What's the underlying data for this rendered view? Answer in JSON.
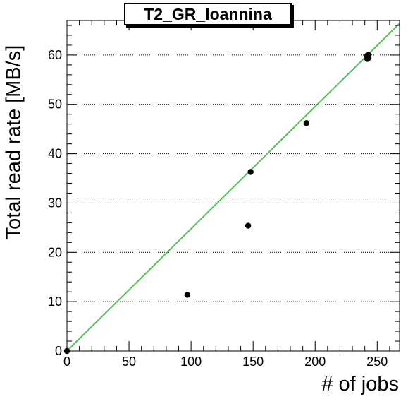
{
  "chart_data": {
    "type": "scatter",
    "title": "T2_GR_Ioannina",
    "xlabel": "# of jobs",
    "ylabel": "Total read rate [MB/s]",
    "xlim": [
      0,
      268
    ],
    "ylim": [
      0,
      67
    ],
    "xticks": [
      0,
      50,
      100,
      150,
      200,
      250
    ],
    "yticks": [
      0,
      10,
      20,
      30,
      40,
      50,
      60
    ],
    "grid": "y-dotted",
    "series": [
      {
        "kind": "points",
        "color": "#000000",
        "x": [
          0,
          97,
          146,
          148,
          193,
          242,
          242,
          242,
          243,
          243
        ],
        "y": [
          0,
          11.4,
          25.4,
          36.3,
          46.2,
          59.2,
          59.6,
          59.9,
          60.0,
          59.4
        ]
      },
      {
        "kind": "fit-line",
        "color": "#55c055",
        "x": [
          0,
          268
        ],
        "y": [
          0,
          66.4
        ]
      }
    ]
  }
}
